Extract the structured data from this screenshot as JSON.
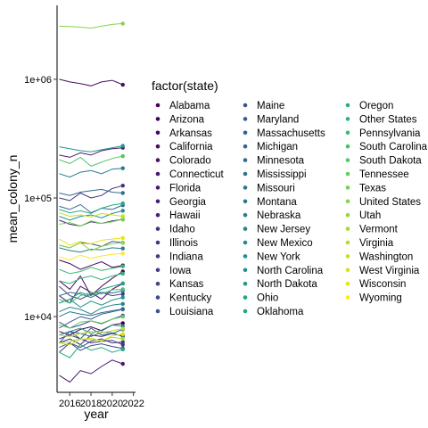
{
  "chart_data": {
    "type": "line",
    "xlabel": "year",
    "ylabel": "mean_colony_n",
    "y_scale": "log10",
    "x_ticks": [
      2016,
      2018,
      2020,
      2022
    ],
    "y_ticks": [
      {
        "value": 10000,
        "label": "1e+04"
      },
      {
        "value": 100000,
        "label": "1e+05"
      },
      {
        "value": 1000000,
        "label": "1e+06"
      }
    ],
    "xlim": [
      2014.8,
      2022.2
    ],
    "ylim": [
      2300,
      4200000
    ],
    "grid": false,
    "legend_title": "factor(state)",
    "legend_position": "right",
    "x": [
      2015,
      2016,
      2017,
      2018,
      2019,
      2020,
      2021
    ],
    "series": [
      {
        "name": "Alabama",
        "values": [
          7500,
          7000,
          7800,
          8200,
          7600,
          8500,
          8800
        ]
      },
      {
        "name": "Arizona",
        "values": [
          30000,
          28000,
          25000,
          27000,
          29000,
          26000,
          27000
        ]
      },
      {
        "name": "Arkansas",
        "values": [
          20000,
          17000,
          22000,
          15000,
          18000,
          21000,
          24000
        ]
      },
      {
        "name": "California",
        "values": [
          1000000,
          950000,
          920000,
          880000,
          950000,
          980000,
          900000
        ]
      },
      {
        "name": "Colorado",
        "values": [
          15000,
          13000,
          18000,
          16000,
          14000,
          17000,
          19000
        ]
      },
      {
        "name": "Connecticut",
        "values": [
          3200,
          2800,
          3500,
          3300,
          3800,
          4300,
          4000
        ]
      },
      {
        "name": "Florida",
        "values": [
          230000,
          220000,
          240000,
          230000,
          250000,
          260000,
          265000
        ]
      },
      {
        "name": "Georgia",
        "values": [
          65000,
          60000,
          58000,
          63000,
          61000,
          64000,
          66000
        ]
      },
      {
        "name": "Hawaii",
        "values": [
          6000,
          6500,
          5800,
          7000,
          6800,
          7200,
          6900
        ]
      },
      {
        "name": "Idaho",
        "values": [
          100000,
          95000,
          110000,
          100000,
          105000,
          120000,
          127000
        ]
      },
      {
        "name": "Illinois",
        "values": [
          6500,
          7000,
          6500,
          6000,
          6200,
          6300,
          5800
        ]
      },
      {
        "name": "Indiana",
        "values": [
          5000,
          6000,
          5500,
          6200,
          6500,
          6000,
          6100
        ]
      },
      {
        "name": "Iowa",
        "values": [
          18000,
          15000,
          14000,
          15500,
          16000,
          15000,
          15500
        ]
      },
      {
        "name": "Kansas",
        "values": [
          9000,
          8000,
          8500,
          9200,
          8700,
          9500,
          10200
        ]
      },
      {
        "name": "Kentucky",
        "values": [
          5500,
          6000,
          5200,
          5700,
          5900,
          5600,
          5400
        ]
      },
      {
        "name": "Louisiana",
        "values": [
          40000,
          38000,
          42000,
          41000,
          39000,
          43000,
          42000
        ]
      },
      {
        "name": "Maine",
        "values": [
          8000,
          9000,
          10000,
          9500,
          10500,
          11000,
          11500
        ]
      },
      {
        "name": "Maryland",
        "values": [
          6000,
          7500,
          6500,
          8000,
          7000,
          7200,
          7800
        ]
      },
      {
        "name": "Massachusetts",
        "values": [
          7000,
          7500,
          7200,
          6800,
          7400,
          7300,
          6800
        ]
      },
      {
        "name": "Michigan",
        "values": [
          85000,
          80000,
          88000,
          75000,
          82000,
          80000,
          87000
        ]
      },
      {
        "name": "Minnesota",
        "values": [
          110000,
          105000,
          112000,
          115000,
          118000,
          112000,
          110000
        ]
      },
      {
        "name": "Mississippi",
        "values": [
          15000,
          16000,
          15500,
          14500,
          16000,
          15800,
          16500
        ]
      },
      {
        "name": "Missouri",
        "values": [
          10000,
          11000,
          10500,
          10200,
          10800,
          11200,
          11600
        ]
      },
      {
        "name": "Montana",
        "values": [
          160000,
          150000,
          165000,
          170000,
          160000,
          175000,
          178000
        ]
      },
      {
        "name": "Nebraska",
        "values": [
          38000,
          36000,
          35000,
          37000,
          36500,
          38000,
          37500
        ]
      },
      {
        "name": "New Jersey",
        "values": [
          11000,
          12000,
          11500,
          10500,
          11800,
          12500,
          12800
        ]
      },
      {
        "name": "New Mexico",
        "values": [
          7000,
          7500,
          8000,
          7200,
          7700,
          8500,
          8300
        ]
      },
      {
        "name": "New York",
        "values": [
          70000,
          65000,
          70000,
          72000,
          68000,
          74000,
          78000
        ]
      },
      {
        "name": "North Carolina",
        "values": [
          13000,
          14000,
          12000,
          13500,
          12500,
          13800,
          14500
        ]
      },
      {
        "name": "North Dakota",
        "values": [
          270000,
          260000,
          250000,
          245000,
          255000,
          265000,
          275000
        ]
      },
      {
        "name": "Ohio",
        "values": [
          13000,
          14000,
          16000,
          15000,
          17000,
          18000,
          19000
        ]
      },
      {
        "name": "Oklahoma",
        "values": [
          5000,
          4500,
          5800,
          5200,
          5500,
          5000,
          5300
        ]
      },
      {
        "name": "Oregon",
        "values": [
          80000,
          75000,
          78000,
          74000,
          82000,
          87000,
          90000
        ]
      },
      {
        "name": "Other States",
        "values": [
          20000,
          19000,
          21000,
          22000,
          20500,
          22000,
          23000
        ]
      },
      {
        "name": "Pennsylvania",
        "values": [
          25000,
          23000,
          24000,
          26000,
          24500,
          25500,
          26500
        ]
      },
      {
        "name": "South Carolina",
        "values": [
          14000,
          13000,
          15000,
          16000,
          15500,
          16800,
          17000
        ]
      },
      {
        "name": "South Dakota",
        "values": [
          210000,
          195000,
          220000,
          185000,
          200000,
          215000,
          225000
        ]
      },
      {
        "name": "Tennessee",
        "values": [
          8500,
          8000,
          9000,
          9200,
          8800,
          9500,
          10000
        ]
      },
      {
        "name": "Texas",
        "values": [
          60000,
          62000,
          58000,
          64000,
          61000,
          63000,
          66000
        ]
      },
      {
        "name": "United States",
        "values": [
          2800000,
          2780000,
          2750000,
          2700000,
          2800000,
          2900000,
          2950000
        ]
      },
      {
        "name": "Utah",
        "values": [
          40000,
          38000,
          42000,
          36000,
          39000,
          41000,
          42000
        ]
      },
      {
        "name": "Vermont",
        "values": [
          6000,
          6200,
          6500,
          6400,
          6300,
          6700,
          6500
        ]
      },
      {
        "name": "Virginia",
        "values": [
          7000,
          6800,
          7200,
          7500,
          7300,
          7600,
          7900
        ]
      },
      {
        "name": "Washington",
        "values": [
          75000,
          70000,
          72000,
          69000,
          74000,
          72000,
          70000
        ]
      },
      {
        "name": "West Virginia",
        "values": [
          6000,
          5800,
          6400,
          6600,
          6200,
          6900,
          7100
        ]
      },
      {
        "name": "Wisconsin",
        "values": [
          45000,
          40000,
          43000,
          41000,
          44000,
          45000,
          46000
        ]
      },
      {
        "name": "Wyoming",
        "values": [
          32000,
          30000,
          33000,
          31000,
          32500,
          33500,
          34000
        ]
      }
    ],
    "colors": [
      "#440154",
      "#450559",
      "#46085c",
      "#471063",
      "#481467",
      "#48186a",
      "#481c6e",
      "#482071",
      "#472575",
      "#46307e",
      "#453581",
      "#433d84",
      "#424086",
      "#404688",
      "#3e4c8a",
      "#3b528b",
      "#39568c",
      "#365c8d",
      "#34618d",
      "#31668e",
      "#2f6c8e",
      "#2d718e",
      "#2b758e",
      "#29798e",
      "#277f8e",
      "#25848e",
      "#23898e",
      "#218e8d",
      "#1f938c",
      "#1f998a",
      "#20a386",
      "#22a785",
      "#28ae80",
      "#2db27d",
      "#3bbb75",
      "#48c16e",
      "#56c667",
      "#65cb5e",
      "#75d054",
      "#84d44b",
      "#93d741",
      "#a5db36",
      "#b5de2b",
      "#c5e021",
      "#d5e21a",
      "#e5e419",
      "#fde725"
    ]
  }
}
